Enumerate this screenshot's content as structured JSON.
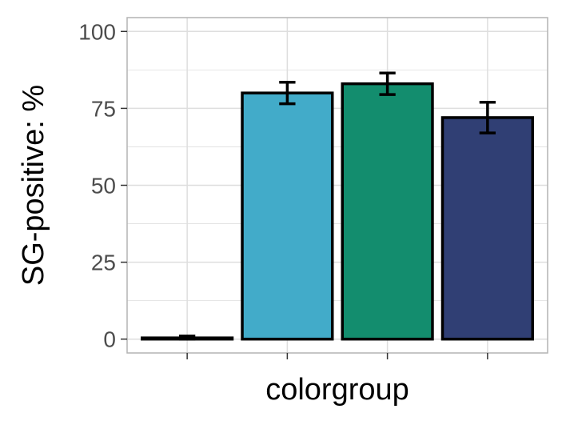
{
  "chart_data": {
    "type": "bar",
    "title": "",
    "xlabel": "colorgroup",
    "ylabel": "SG-positive: %",
    "ylim": [
      -4.5,
      104.5
    ],
    "yticks": [
      0,
      25,
      50,
      75,
      100
    ],
    "ytick_labels": [
      "0",
      "25",
      "50",
      "75",
      "100"
    ],
    "grid": true,
    "legend": "none",
    "categories": [
      "",
      "",
      "",
      ""
    ],
    "values": [
      0.4,
      80,
      83,
      72
    ],
    "error_low": [
      0,
      76.5,
      79.5,
      67
    ],
    "error_high": [
      1,
      83.5,
      86.5,
      77
    ],
    "colors": [
      "#000000",
      "#42ABC9",
      "#138D6E",
      "#303F74"
    ],
    "bar_outline": "#000000",
    "panel_border": "#b3b3b3",
    "gridline_color": "#dedede"
  }
}
